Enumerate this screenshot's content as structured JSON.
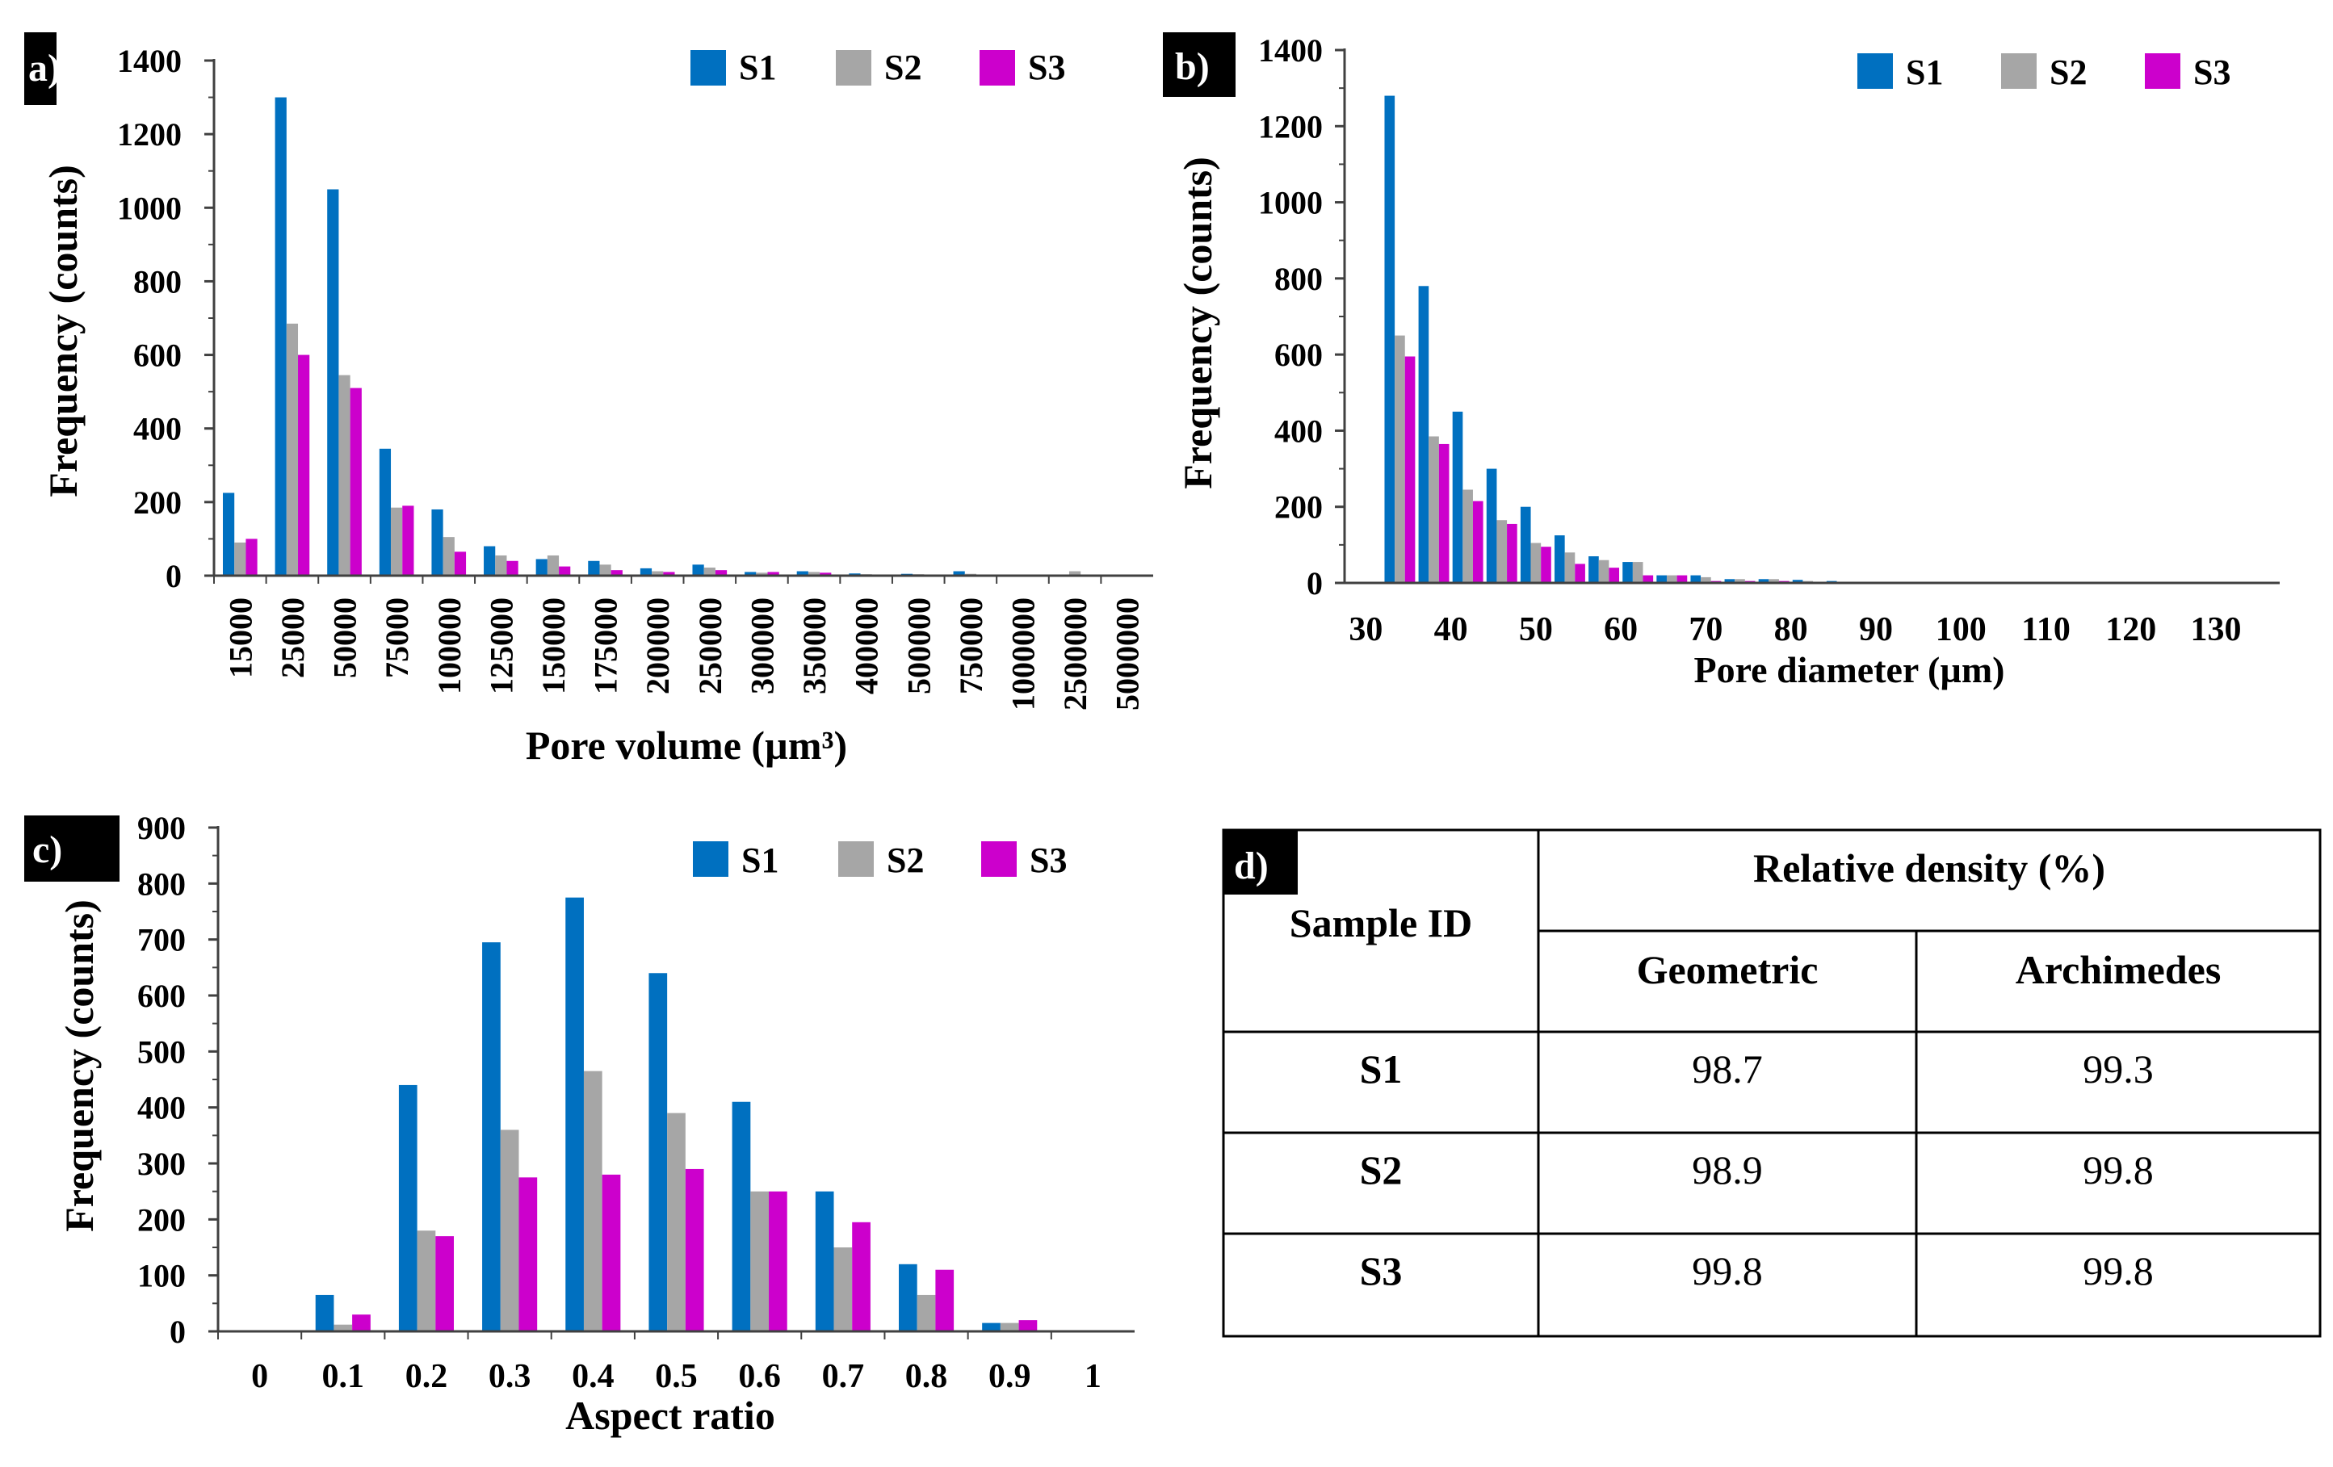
{
  "colors": {
    "S1": "#0070c0",
    "S2": "#a6a6a6",
    "S3": "#cc00cc",
    "axis": "#404040",
    "text": "#000000",
    "tag_bg": "#000000"
  },
  "chart_data": [
    {
      "panel": "a)",
      "type": "bar",
      "title": "",
      "xlabel": "Pore volume (µm³)",
      "ylabel": "Frequency (counts)",
      "ylim": [
        0,
        1400
      ],
      "yticks": [
        0,
        200,
        400,
        600,
        800,
        1000,
        1200,
        1400
      ],
      "categories": [
        "15000",
        "25000",
        "50000",
        "75000",
        "100000",
        "125000",
        "150000",
        "175000",
        "200000",
        "250000",
        "300000",
        "350000",
        "400000",
        "500000",
        "750000",
        "1000000",
        "2500000",
        "5000000"
      ],
      "series": [
        {
          "name": "S1",
          "values": [
            225,
            1300,
            1050,
            345,
            180,
            80,
            45,
            40,
            20,
            30,
            10,
            12,
            6,
            5,
            12,
            3,
            2,
            1
          ]
        },
        {
          "name": "S2",
          "values": [
            90,
            685,
            545,
            185,
            105,
            55,
            55,
            30,
            12,
            22,
            8,
            10,
            4,
            4,
            5,
            3,
            12,
            2
          ]
        },
        {
          "name": "S3",
          "values": [
            100,
            600,
            510,
            190,
            65,
            40,
            25,
            15,
            10,
            15,
            10,
            8,
            3,
            3,
            2,
            2,
            2,
            1
          ]
        }
      ],
      "legend": [
        "S1",
        "S2",
        "S3"
      ],
      "legend_position": "top-right"
    },
    {
      "panel": "b)",
      "type": "bar",
      "title": "",
      "xlabel": "Pore diameter (µm)",
      "ylabel": "Frequency (counts)",
      "xlim": [
        27.5,
        137.5
      ],
      "ylim": [
        0,
        1400
      ],
      "yticks": [
        0,
        200,
        400,
        600,
        800,
        1000,
        1200,
        1400
      ],
      "xticks": [
        30,
        40,
        50,
        60,
        70,
        80,
        90,
        100,
        110,
        120,
        130
      ],
      "x": [
        34,
        38,
        42,
        46,
        50,
        54,
        58,
        62,
        66,
        70,
        74,
        78,
        82,
        86,
        90,
        94,
        98,
        102,
        106,
        110,
        114,
        118,
        122,
        126,
        130
      ],
      "series": [
        {
          "name": "S1",
          "values": [
            1280,
            780,
            450,
            300,
            200,
            125,
            70,
            55,
            20,
            20,
            10,
            10,
            8,
            5,
            2,
            2,
            2,
            2,
            2,
            2,
            2,
            2,
            2,
            2,
            2
          ]
        },
        {
          "name": "S2",
          "values": [
            650,
            385,
            245,
            165,
            105,
            80,
            60,
            55,
            20,
            15,
            10,
            10,
            5,
            3,
            2,
            1,
            1,
            1,
            1,
            1,
            1,
            1,
            1,
            1,
            1
          ]
        },
        {
          "name": "S3",
          "values": [
            595,
            365,
            215,
            155,
            95,
            50,
            40,
            20,
            20,
            5,
            5,
            5,
            3,
            2,
            1,
            1,
            1,
            1,
            1,
            1,
            1,
            1,
            1,
            1,
            1
          ]
        }
      ],
      "legend": [
        "S1",
        "S2",
        "S3"
      ],
      "legend_position": "top-right"
    },
    {
      "panel": "c)",
      "type": "bar",
      "title": "",
      "xlabel": "Aspect ratio",
      "ylabel": "Frequency (counts)",
      "ylim": [
        0,
        900
      ],
      "yticks": [
        0,
        100,
        200,
        300,
        400,
        500,
        600,
        700,
        800,
        900
      ],
      "categories": [
        "0",
        "0.1",
        "0.2",
        "0.3",
        "0.4",
        "0.5",
        "0.6",
        "0.7",
        "0.8",
        "0.9",
        "1"
      ],
      "series": [
        {
          "name": "S1",
          "values": [
            0,
            65,
            440,
            695,
            775,
            640,
            410,
            250,
            120,
            15,
            0
          ]
        },
        {
          "name": "S2",
          "values": [
            0,
            12,
            180,
            360,
            465,
            390,
            250,
            150,
            65,
            15,
            0
          ]
        },
        {
          "name": "S3",
          "values": [
            0,
            30,
            170,
            275,
            280,
            290,
            250,
            195,
            110,
            20,
            0
          ]
        }
      ],
      "legend": [
        "S1",
        "S2",
        "S3"
      ],
      "legend_position": "top-right"
    },
    {
      "panel": "d)",
      "type": "table",
      "header_sample": "Sample ID",
      "header_group": "Relative density (%)",
      "header_cols": [
        "Geometric",
        "Archimedes"
      ],
      "rows": [
        {
          "id": "S1",
          "geometric": "98.7",
          "archimedes": "99.3"
        },
        {
          "id": "S2",
          "geometric": "98.9",
          "archimedes": "99.8"
        },
        {
          "id": "S3",
          "geometric": "99.8",
          "archimedes": "99.8"
        }
      ]
    }
  ]
}
